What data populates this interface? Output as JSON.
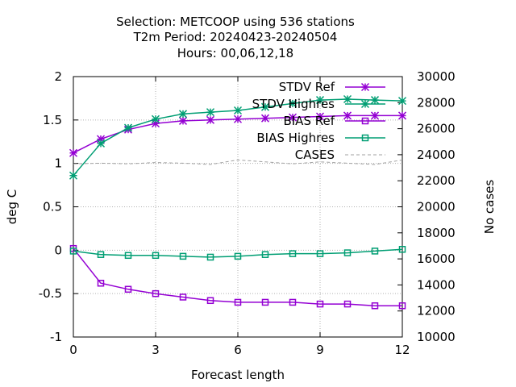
{
  "chart_data": {
    "type": "line",
    "title_lines": [
      "Selection: METCOOP using   536 stations",
      "T2m   Period: 20240423-20240504",
      "Hours:  00,06,12,18"
    ],
    "xlabel": "Forecast length",
    "ylabel": "deg C",
    "y2label": "No cases",
    "xlim": [
      0,
      12
    ],
    "ylim": [
      -1,
      2
    ],
    "y2lim": [
      10000,
      30000
    ],
    "xticks": [
      "0",
      "3",
      "6",
      "9",
      "12"
    ],
    "yticks": [
      "-1",
      "-0.5",
      "0",
      "0.5",
      "1",
      "1.5",
      "2"
    ],
    "y2ticks": [
      "10000",
      "12000",
      "14000",
      "16000",
      "18000",
      "20000",
      "22000",
      "24000",
      "26000",
      "28000",
      "30000"
    ],
    "grid": true,
    "legend_position": "top-right",
    "x": [
      0,
      1,
      2,
      3,
      4,
      5,
      6,
      7,
      8,
      9,
      10,
      11,
      12
    ],
    "series": [
      {
        "name": "STDV Ref",
        "axis": "y",
        "color": "#9400d3",
        "marker": "star",
        "dashed": false,
        "values": [
          1.12,
          1.28,
          1.39,
          1.46,
          1.49,
          1.5,
          1.51,
          1.52,
          1.53,
          1.54,
          1.55,
          1.55,
          1.55
        ]
      },
      {
        "name": "STDV Highres",
        "axis": "y",
        "color": "#009e73",
        "marker": "star",
        "dashed": false,
        "values": [
          0.86,
          1.23,
          1.41,
          1.51,
          1.57,
          1.59,
          1.61,
          1.65,
          1.69,
          1.73,
          1.74,
          1.73,
          1.72
        ]
      },
      {
        "name": "BIAS Ref",
        "axis": "y",
        "color": "#9400d3",
        "marker": "square",
        "dashed": false,
        "values": [
          0.02,
          -0.38,
          -0.45,
          -0.5,
          -0.54,
          -0.58,
          -0.6,
          -0.6,
          -0.6,
          -0.62,
          -0.62,
          -0.64,
          -0.64
        ]
      },
      {
        "name": "BIAS Highres",
        "axis": "y",
        "color": "#009e73",
        "marker": "square",
        "dashed": false,
        "values": [
          -0.01,
          -0.05,
          -0.06,
          -0.06,
          -0.07,
          -0.08,
          -0.07,
          -0.05,
          -0.04,
          -0.04,
          -0.03,
          -0.01,
          0.01
        ]
      },
      {
        "name": "CASES",
        "axis": "y2",
        "color": "#a0a0a0",
        "marker": "none",
        "dashed": true,
        "values": [
          23300,
          23350,
          23300,
          23400,
          23350,
          23250,
          23600,
          23450,
          23300,
          23450,
          23350,
          23250,
          23600
        ]
      }
    ]
  }
}
